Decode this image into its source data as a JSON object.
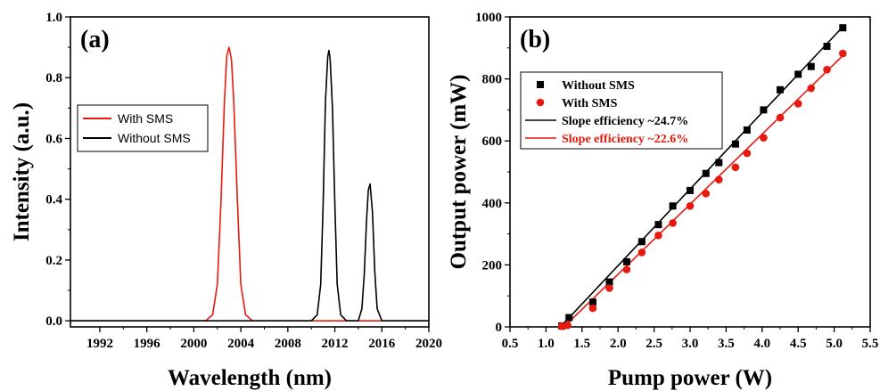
{
  "chart_data": [
    {
      "type": "line",
      "panel_label": "(a)",
      "xlabel": "Wavelength (nm)",
      "ylabel": "Intensity (a.u.)",
      "xlim": [
        1989.5,
        2020
      ],
      "ylim": [
        -0.02,
        1.0
      ],
      "xticks": [
        1992,
        1996,
        2000,
        2004,
        2008,
        2012,
        2016,
        2020
      ],
      "yticks": [
        0.0,
        0.2,
        0.4,
        0.6,
        0.8,
        1.0
      ],
      "xtick_labels": [
        "1992",
        "1996",
        "2000",
        "2004",
        "2008",
        "2012",
        "2016",
        "2020"
      ],
      "ytick_labels": [
        "0.0",
        "0.2",
        "0.4",
        "0.6",
        "0.8",
        "1.0"
      ],
      "grid": false,
      "legend_position": "center-left",
      "series": [
        {
          "name": "With SMS",
          "color": "#e8190f",
          "x": [
            1989.5,
            2001.0,
            2001.6,
            2002.0,
            2002.3,
            2002.6,
            2002.8,
            2003.0,
            2003.2,
            2003.4,
            2003.7,
            2004.0,
            2004.4,
            2005.0,
            2020.0
          ],
          "y": [
            0.0,
            0.0,
            0.02,
            0.12,
            0.38,
            0.72,
            0.87,
            0.9,
            0.86,
            0.72,
            0.4,
            0.12,
            0.02,
            0.0,
            0.0
          ]
        },
        {
          "name": "Without SMS",
          "color": "#000000",
          "x": [
            1989.5,
            2010.0,
            2010.5,
            2010.8,
            2011.0,
            2011.2,
            2011.4,
            2011.5,
            2011.6,
            2011.8,
            2012.0,
            2012.2,
            2012.5,
            2013.0,
            2014.0,
            2014.3,
            2014.5,
            2014.7,
            2014.85,
            2015.0,
            2015.2,
            2015.4,
            2015.6,
            2016.0,
            2020.0
          ],
          "y": [
            0.0,
            0.0,
            0.02,
            0.12,
            0.38,
            0.72,
            0.87,
            0.89,
            0.86,
            0.7,
            0.38,
            0.12,
            0.02,
            0.0,
            0.0,
            0.04,
            0.15,
            0.33,
            0.43,
            0.45,
            0.36,
            0.16,
            0.04,
            0.0,
            0.0
          ]
        }
      ]
    },
    {
      "type": "scatter",
      "panel_label": "(b)",
      "xlabel": "Pump power (W)",
      "ylabel": "Output power (mW)",
      "xlim": [
        0.5,
        5.5
      ],
      "ylim": [
        0,
        1000
      ],
      "xticks": [
        0.5,
        1.0,
        1.5,
        2.0,
        2.5,
        3.0,
        3.5,
        4.0,
        4.5,
        5.0,
        5.5
      ],
      "yticks": [
        0,
        200,
        400,
        600,
        800,
        1000
      ],
      "xtick_labels": [
        "0.5",
        "1.0",
        "1.5",
        "2.0",
        "2.5",
        "3.0",
        "3.5",
        "4.0",
        "4.5",
        "5.0",
        "5.5"
      ],
      "ytick_labels": [
        "0",
        "200",
        "400",
        "600",
        "800",
        "1000"
      ],
      "grid": false,
      "legend_position": "top-left",
      "series": [
        {
          "name": "Without SMS",
          "marker": "square",
          "color": "#000000",
          "x": [
            1.22,
            1.32,
            1.65,
            1.88,
            2.12,
            2.33,
            2.56,
            2.76,
            3.0,
            3.22,
            3.4,
            3.63,
            3.79,
            4.02,
            4.25,
            4.5,
            4.68,
            4.9,
            5.12
          ],
          "y": [
            3,
            30,
            80,
            145,
            210,
            275,
            330,
            390,
            440,
            495,
            530,
            590,
            635,
            700,
            765,
            815,
            840,
            905,
            965
          ]
        },
        {
          "name": "With SMS",
          "marker": "circle",
          "color": "#e8190f",
          "x": [
            1.22,
            1.3,
            1.65,
            1.88,
            2.12,
            2.33,
            2.56,
            2.76,
            3.0,
            3.22,
            3.4,
            3.63,
            3.79,
            4.02,
            4.25,
            4.5,
            4.68,
            4.9,
            5.12
          ],
          "y": [
            2,
            5,
            60,
            125,
            185,
            240,
            295,
            335,
            390,
            430,
            475,
            515,
            560,
            610,
            675,
            720,
            770,
            830,
            882
          ]
        },
        {
          "name": "Slope efficiency ~24.7%",
          "kind": "fit-line",
          "color": "#000000",
          "x": [
            1.2,
            5.12
          ],
          "y": [
            0,
            968
          ]
        },
        {
          "name": "Slope efficiency ~22.6%",
          "kind": "fit-line",
          "color": "#e8190f",
          "x": [
            1.25,
            5.12
          ],
          "y": [
            0,
            875
          ]
        }
      ]
    }
  ]
}
